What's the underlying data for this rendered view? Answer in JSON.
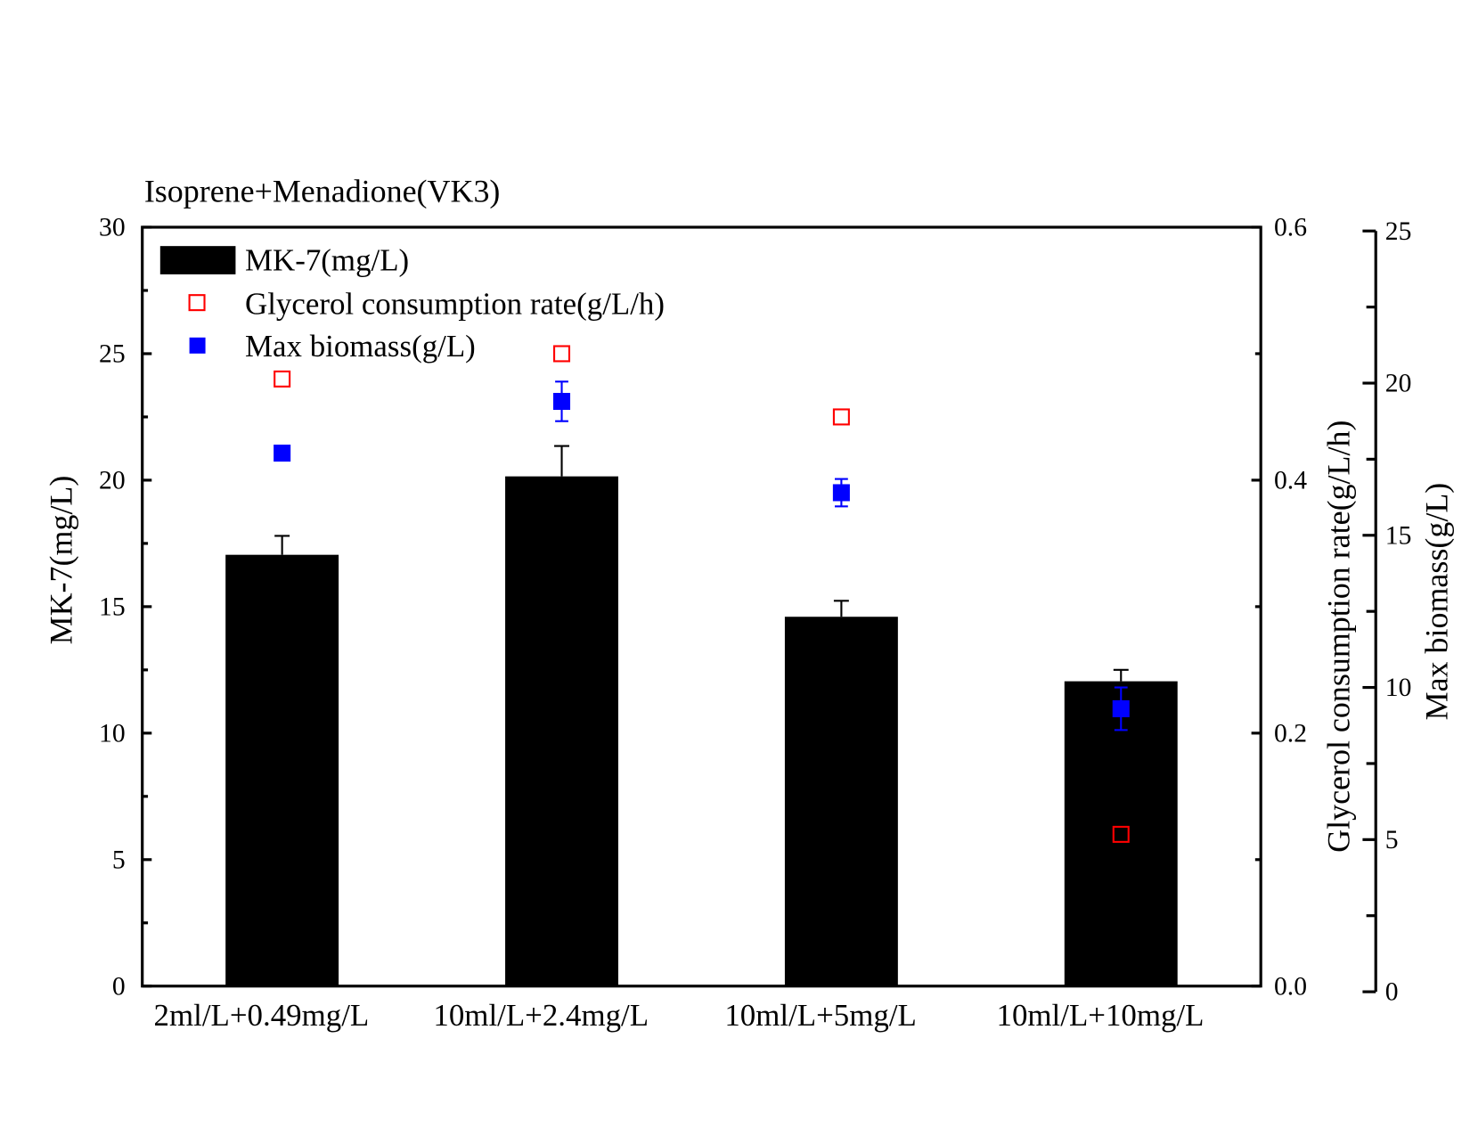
{
  "chart_data": {
    "type": "bar",
    "title": "Isoprene+Menadione(VK3)",
    "categories": [
      "2ml/L+0.49mg/L",
      "10ml/L+2.4mg/L",
      "10ml/L+5mg/L",
      "10ml/L+10mg/L"
    ],
    "axes": {
      "left": {
        "label": "MK-7(mg/L)",
        "ylim": [
          0,
          30
        ],
        "ticks": [
          "0",
          "5",
          "10",
          "15",
          "20",
          "25",
          "30"
        ],
        "tick_values": [
          0,
          5,
          10,
          15,
          20,
          25,
          30
        ]
      },
      "right1": {
        "label": "Glycerol consumption rate(g/L/h)",
        "ylim": [
          0,
          0.6
        ],
        "ticks": [
          "0.0",
          "0.2",
          "0.4",
          "0.6"
        ],
        "tick_values": [
          0,
          0.2,
          0.4,
          0.6
        ]
      },
      "right2": {
        "label": "Max biomass(g/L)",
        "ylim": [
          0,
          25
        ],
        "ticks": [
          "0",
          "5",
          "10",
          "15",
          "20",
          "25"
        ],
        "tick_values": [
          0,
          5,
          10,
          15,
          20,
          25
        ]
      }
    },
    "series": [
      {
        "name": "MK-7(mg/L)",
        "kind": "bar",
        "axis": "left",
        "color": "#000000",
        "values": [
          17.05,
          20.15,
          14.6,
          12.05
        ],
        "errors": [
          0.75,
          1.2,
          0.63,
          0.45
        ]
      },
      {
        "name": "Glycerol consumption rate(g/L/h)",
        "kind": "open-square",
        "axis": "right1",
        "color": "#ff0000",
        "values": [
          0.48,
          0.5,
          0.45,
          0.12
        ]
      },
      {
        "name": "Max biomass(g/L)",
        "kind": "filled-square",
        "axis": "right2",
        "color": "#0000ff",
        "values": [
          17.7,
          19.4,
          16.4,
          9.3
        ],
        "errors": [
          0.1,
          0.65,
          0.45,
          0.7
        ]
      }
    ],
    "legend": "top-left",
    "grid": false
  }
}
